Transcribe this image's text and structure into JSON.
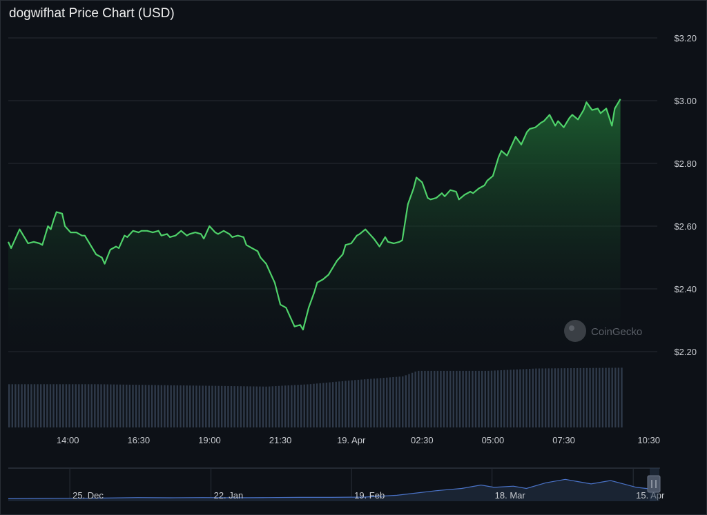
{
  "title": "dogwifhat Price Chart (USD)",
  "watermark": "CoinGecko",
  "colors": {
    "background": "#0d1117",
    "price_line": "#4fd26a",
    "area_top": "#1f6b34",
    "grid": "#262c33",
    "volume_bar": "#2f3a4a",
    "navigator_line": "#4a73c8"
  },
  "chart_data": {
    "type": "line",
    "y_ticks": [
      "$3.20",
      "$3.00",
      "$2.80",
      "$2.60",
      "$2.40",
      "$2.20"
    ],
    "y_tick_values": [
      3.2,
      3.0,
      2.8,
      2.6,
      2.4,
      2.2
    ],
    "ylim": [
      2.2,
      3.2
    ],
    "grid": true,
    "x_ticks": [
      "14:00",
      "16:30",
      "19:00",
      "21:30",
      "19. Apr",
      "02:30",
      "05:00",
      "07:30",
      "10:30"
    ],
    "x_tick_hours": [
      14.0,
      16.5,
      19.0,
      21.5,
      24.0,
      26.5,
      29.0,
      31.5,
      34.5
    ],
    "price": [
      [
        11.9,
        2.55
      ],
      [
        12.0,
        2.53
      ],
      [
        12.2,
        2.57
      ],
      [
        12.3,
        2.59
      ],
      [
        12.5,
        2.56
      ],
      [
        12.6,
        2.545
      ],
      [
        12.8,
        2.55
      ],
      [
        13.0,
        2.545
      ],
      [
        13.1,
        2.54
      ],
      [
        13.3,
        2.6
      ],
      [
        13.4,
        2.59
      ],
      [
        13.5,
        2.62
      ],
      [
        13.6,
        2.645
      ],
      [
        13.8,
        2.64
      ],
      [
        13.9,
        2.6
      ],
      [
        14.1,
        2.58
      ],
      [
        14.3,
        2.58
      ],
      [
        14.5,
        2.57
      ],
      [
        14.6,
        2.57
      ],
      [
        14.8,
        2.54
      ],
      [
        15.0,
        2.51
      ],
      [
        15.2,
        2.5
      ],
      [
        15.3,
        2.48
      ],
      [
        15.5,
        2.525
      ],
      [
        15.7,
        2.535
      ],
      [
        15.8,
        2.53
      ],
      [
        16.0,
        2.57
      ],
      [
        16.1,
        2.565
      ],
      [
        16.3,
        2.585
      ],
      [
        16.5,
        2.58
      ],
      [
        16.6,
        2.585
      ],
      [
        16.8,
        2.585
      ],
      [
        17.0,
        2.58
      ],
      [
        17.2,
        2.585
      ],
      [
        17.3,
        2.57
      ],
      [
        17.5,
        2.575
      ],
      [
        17.6,
        2.565
      ],
      [
        17.8,
        2.57
      ],
      [
        18.0,
        2.585
      ],
      [
        18.2,
        2.57
      ],
      [
        18.3,
        2.575
      ],
      [
        18.5,
        2.58
      ],
      [
        18.7,
        2.575
      ],
      [
        18.8,
        2.56
      ],
      [
        19.0,
        2.6
      ],
      [
        19.2,
        2.58
      ],
      [
        19.3,
        2.575
      ],
      [
        19.5,
        2.585
      ],
      [
        19.7,
        2.575
      ],
      [
        19.8,
        2.565
      ],
      [
        20.0,
        2.57
      ],
      [
        20.2,
        2.565
      ],
      [
        20.3,
        2.54
      ],
      [
        20.5,
        2.53
      ],
      [
        20.7,
        2.52
      ],
      [
        20.8,
        2.5
      ],
      [
        21.0,
        2.48
      ],
      [
        21.2,
        2.44
      ],
      [
        21.3,
        2.42
      ],
      [
        21.5,
        2.35
      ],
      [
        21.7,
        2.34
      ],
      [
        21.8,
        2.32
      ],
      [
        22.0,
        2.28
      ],
      [
        22.2,
        2.285
      ],
      [
        22.3,
        2.27
      ],
      [
        22.5,
        2.34
      ],
      [
        22.7,
        2.39
      ],
      [
        22.8,
        2.42
      ],
      [
        23.0,
        2.43
      ],
      [
        23.2,
        2.445
      ],
      [
        23.3,
        2.46
      ],
      [
        23.5,
        2.49
      ],
      [
        23.7,
        2.51
      ],
      [
        23.8,
        2.54
      ],
      [
        24.0,
        2.545
      ],
      [
        24.2,
        2.57
      ],
      [
        24.3,
        2.575
      ],
      [
        24.5,
        2.59
      ],
      [
        24.7,
        2.57
      ],
      [
        24.8,
        2.56
      ],
      [
        25.0,
        2.535
      ],
      [
        25.2,
        2.565
      ],
      [
        25.3,
        2.55
      ],
      [
        25.5,
        2.545
      ],
      [
        25.7,
        2.55
      ],
      [
        25.8,
        2.555
      ],
      [
        26.0,
        2.67
      ],
      [
        26.2,
        2.72
      ],
      [
        26.3,
        2.755
      ],
      [
        26.5,
        2.74
      ],
      [
        26.7,
        2.69
      ],
      [
        26.8,
        2.685
      ],
      [
        27.0,
        2.69
      ],
      [
        27.2,
        2.705
      ],
      [
        27.3,
        2.695
      ],
      [
        27.5,
        2.715
      ],
      [
        27.7,
        2.71
      ],
      [
        27.8,
        2.685
      ],
      [
        28.0,
        2.7
      ],
      [
        28.2,
        2.71
      ],
      [
        28.3,
        2.705
      ],
      [
        28.5,
        2.72
      ],
      [
        28.7,
        2.73
      ],
      [
        28.8,
        2.745
      ],
      [
        29.0,
        2.76
      ],
      [
        29.2,
        2.82
      ],
      [
        29.3,
        2.84
      ],
      [
        29.5,
        2.825
      ],
      [
        29.7,
        2.865
      ],
      [
        29.8,
        2.885
      ],
      [
        30.0,
        2.86
      ],
      [
        30.2,
        2.9
      ],
      [
        30.3,
        2.91
      ],
      [
        30.5,
        2.915
      ],
      [
        30.7,
        2.93
      ],
      [
        30.8,
        2.935
      ],
      [
        31.0,
        2.955
      ],
      [
        31.2,
        2.92
      ],
      [
        31.3,
        2.935
      ],
      [
        31.5,
        2.915
      ],
      [
        31.7,
        2.945
      ],
      [
        31.8,
        2.955
      ],
      [
        32.0,
        2.94
      ],
      [
        32.2,
        2.97
      ],
      [
        32.3,
        2.995
      ],
      [
        32.5,
        2.97
      ],
      [
        32.7,
        2.975
      ],
      [
        32.8,
        2.96
      ],
      [
        33.0,
        2.975
      ],
      [
        33.2,
        2.92
      ],
      [
        33.3,
        2.975
      ],
      [
        33.5,
        3.005
      ]
    ],
    "volume_relative": [
      [
        11.9,
        0.55
      ],
      [
        15.0,
        0.55
      ],
      [
        21.0,
        0.52
      ],
      [
        22.5,
        0.55
      ],
      [
        24.0,
        0.6
      ],
      [
        25.8,
        0.65
      ],
      [
        26.3,
        0.72
      ],
      [
        28.8,
        0.72
      ],
      [
        30.5,
        0.75
      ],
      [
        33.5,
        0.76
      ]
    ],
    "navigator": {
      "x_ticks": [
        "25. Dec",
        "22. Jan",
        "19. Feb",
        "18. Mar",
        "15. Apr"
      ],
      "series": [
        [
          0.0,
          0.05
        ],
        [
          0.05,
          0.06
        ],
        [
          0.1,
          0.07
        ],
        [
          0.15,
          0.08
        ],
        [
          0.2,
          0.1
        ],
        [
          0.25,
          0.09
        ],
        [
          0.3,
          0.1
        ],
        [
          0.35,
          0.09
        ],
        [
          0.4,
          0.1
        ],
        [
          0.45,
          0.11
        ],
        [
          0.5,
          0.11
        ],
        [
          0.55,
          0.12
        ],
        [
          0.6,
          0.2
        ],
        [
          0.63,
          0.3
        ],
        [
          0.66,
          0.4
        ],
        [
          0.7,
          0.5
        ],
        [
          0.73,
          0.65
        ],
        [
          0.75,
          0.55
        ],
        [
          0.78,
          0.6
        ],
        [
          0.8,
          0.5
        ],
        [
          0.83,
          0.75
        ],
        [
          0.86,
          0.9
        ],
        [
          0.88,
          0.8
        ],
        [
          0.9,
          0.7
        ],
        [
          0.93,
          0.85
        ],
        [
          0.95,
          0.7
        ],
        [
          0.97,
          0.55
        ],
        [
          1.0,
          0.45
        ]
      ]
    }
  }
}
